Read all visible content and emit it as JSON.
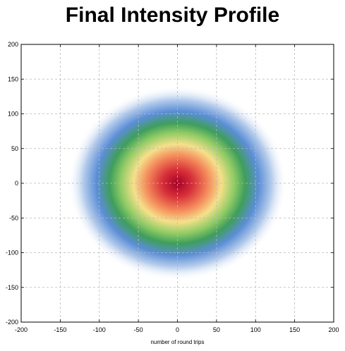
{
  "chart_data": {
    "type": "heatmap",
    "title": "Final Intensity Profile",
    "xlabel": "number of round trips",
    "ylabel": "",
    "xlim": [
      -200,
      200
    ],
    "ylim": [
      -200,
      200
    ],
    "x_ticks": [
      -200,
      -150,
      -100,
      -50,
      0,
      50,
      100,
      150,
      200
    ],
    "y_ticks": [
      -200,
      -150,
      -100,
      -50,
      0,
      50,
      100,
      150,
      200
    ],
    "grid": true,
    "colormap": [
      "#ffffff",
      "#5b8fd6",
      "#3faa50",
      "#f0e070",
      "#f08040",
      "#a80020"
    ],
    "beam": {
      "center_x": 0,
      "center_y": 0,
      "radius_at_half_max": 55
    }
  }
}
